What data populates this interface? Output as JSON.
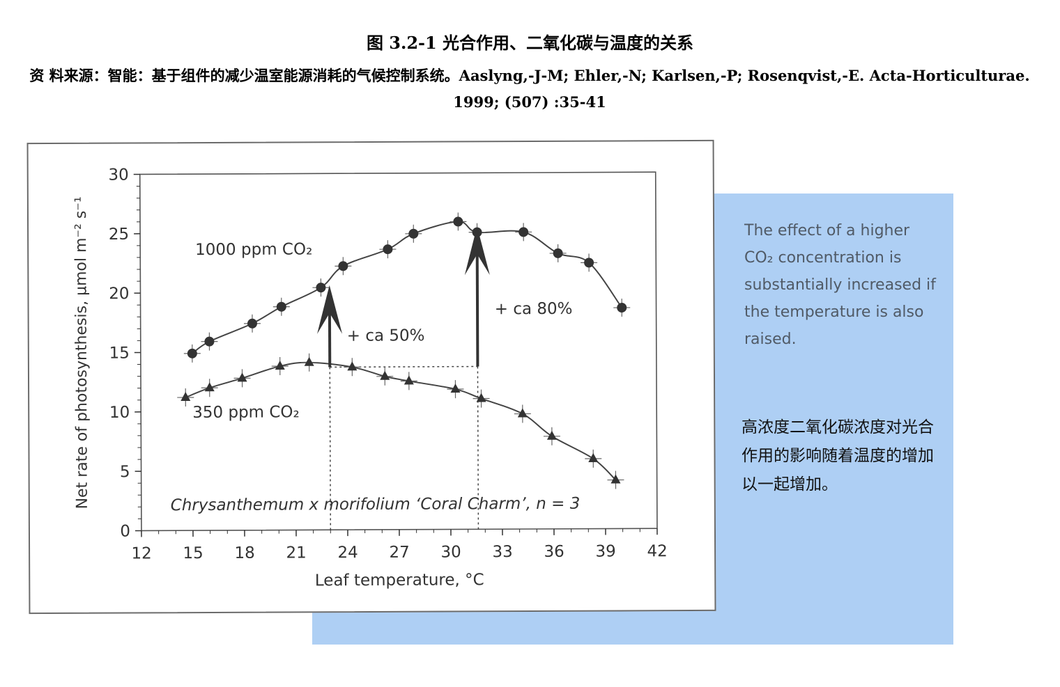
{
  "header": {
    "title": "图 3.2-1 光合作用、二氧化碳与温度的关系",
    "source": "资 料来源：智能：基于组件的减少温室能源消耗的气候控制系统。Aaslyng,-J-M; Ehler,-N; Karlsen,-P; Rosenqvist,-E. Acta-Horticulturae. 1999; (507) :35-41"
  },
  "notes": {
    "english": "The effect of a higher CO₂ concentration is substantially increased if the temperature is also raised.",
    "chinese": "高浓度二氧化碳浓度对光合作用的影响随着温度的增加以一起增加。"
  },
  "colors": {
    "panel_blue": "#aecff4",
    "ink": "#333333"
  },
  "chart_data": {
    "type": "scatter",
    "xlabel": "Leaf temperature, °C",
    "ylabel": "Net rate of photosynthesis, μmol m⁻² s⁻¹",
    "xlim": [
      12,
      42
    ],
    "ylim": [
      0,
      30
    ],
    "x_ticks": [
      "12",
      "15",
      "18",
      "21",
      "24",
      "27",
      "30",
      "33",
      "36",
      "39",
      "42"
    ],
    "y_ticks": [
      "0",
      "5",
      "10",
      "15",
      "20",
      "25",
      "30"
    ],
    "grid": false,
    "species_label": "Chrysanthemum x morifolium ‘Coral Charm’, n = 3",
    "series": [
      {
        "name": "1000 ppm CO₂",
        "marker": "circle",
        "x": [
          15.0,
          16.0,
          18.5,
          20.2,
          22.5,
          23.8,
          26.4,
          27.9,
          30.5,
          31.6,
          34.3,
          36.3,
          38.1,
          40.0
        ],
        "y": [
          14.9,
          15.9,
          17.4,
          18.8,
          20.4,
          22.2,
          23.6,
          24.9,
          25.9,
          25.0,
          25.0,
          23.2,
          22.4,
          18.6
        ]
      },
      {
        "name": "350 ppm CO₂",
        "marker": "triangle",
        "x": [
          14.6,
          16.0,
          17.9,
          20.1,
          21.8,
          24.3,
          26.2,
          27.6,
          30.3,
          31.8,
          34.2,
          35.9,
          38.3,
          39.6
        ],
        "y": [
          11.2,
          12.0,
          12.8,
          13.8,
          14.1,
          13.7,
          12.9,
          12.5,
          11.8,
          11.0,
          9.7,
          7.8,
          5.9,
          4.1
        ]
      }
    ],
    "annotations": [
      {
        "label": "+ ca 50%",
        "x": 23.0,
        "from_y": 13.7,
        "to_y": 20.6
      },
      {
        "label": "+ ca 80%",
        "x": 31.6,
        "from_y": 13.7,
        "to_y": 25.5
      }
    ]
  }
}
